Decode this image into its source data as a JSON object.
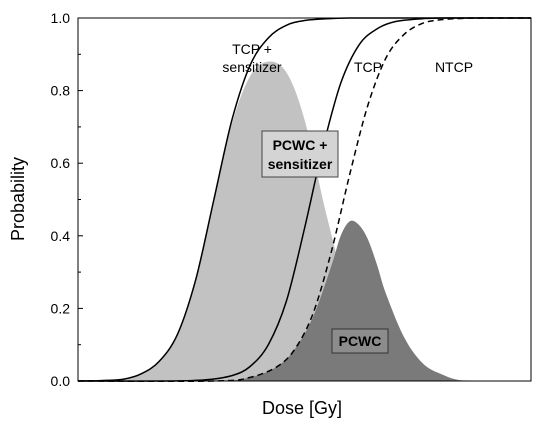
{
  "colors": {
    "pcwc_sensitizer_fill": "#c2c2c2",
    "pcwc_fill": "#7a7a7a",
    "curve_stroke": "#000000",
    "label_box_fill": "#d4d4d4"
  },
  "chart_data": {
    "type": "line",
    "title": "",
    "xlabel": "Dose [Gy]",
    "ylabel": "Probability",
    "ylim": [
      0,
      1.0
    ],
    "yticks": [
      "0.0",
      "0.2",
      "0.4",
      "0.6",
      "0.8",
      "1.0"
    ],
    "xticks_shown": false,
    "grid": false,
    "series": [
      {
        "name": "TCP + sensitizer",
        "style": "solid",
        "x": [
          0.0,
          0.05,
          0.1,
          0.14,
          0.18,
          0.22,
          0.26,
          0.3,
          0.34,
          0.38,
          0.42,
          0.46,
          0.5,
          0.55,
          0.6,
          0.65,
          0.7,
          0.8,
          1.0
        ],
        "values": [
          0.0,
          0.001,
          0.005,
          0.02,
          0.055,
          0.13,
          0.28,
          0.5,
          0.72,
          0.87,
          0.945,
          0.98,
          0.993,
          0.998,
          1.0,
          1.0,
          1.0,
          1.0,
          1.0
        ]
      },
      {
        "name": "TCP",
        "style": "solid",
        "x": [
          0.0,
          0.2,
          0.28,
          0.34,
          0.38,
          0.42,
          0.46,
          0.5,
          0.54,
          0.58,
          0.62,
          0.66,
          0.7,
          0.76,
          0.82,
          0.9,
          1.0
        ],
        "values": [
          0.0,
          0.0,
          0.003,
          0.015,
          0.04,
          0.1,
          0.22,
          0.42,
          0.64,
          0.82,
          0.925,
          0.97,
          0.99,
          0.998,
          1.0,
          1.0,
          1.0
        ]
      },
      {
        "name": "NTCP",
        "style": "dashed",
        "x": [
          0.0,
          0.3,
          0.38,
          0.44,
          0.48,
          0.52,
          0.56,
          0.6,
          0.64,
          0.68,
          0.72,
          0.76,
          0.8,
          0.85,
          0.9,
          1.0
        ],
        "values": [
          0.0,
          0.0,
          0.01,
          0.04,
          0.09,
          0.19,
          0.36,
          0.57,
          0.76,
          0.89,
          0.955,
          0.985,
          0.995,
          0.999,
          1.0,
          1.0
        ]
      },
      {
        "name": "PCWC + sensitizer",
        "style": "area",
        "x": [
          0.0,
          0.05,
          0.1,
          0.14,
          0.18,
          0.22,
          0.26,
          0.3,
          0.34,
          0.38,
          0.42,
          0.46,
          0.5,
          0.55,
          0.6,
          0.65,
          0.7,
          0.8,
          1.0
        ],
        "values": [
          0.0,
          0.0,
          0.005,
          0.02,
          0.055,
          0.13,
          0.28,
          0.5,
          0.71,
          0.84,
          0.88,
          0.85,
          0.72,
          0.45,
          0.22,
          0.09,
          0.03,
          0.005,
          0.0
        ]
      },
      {
        "name": "PCWC",
        "style": "area",
        "x": [
          0.0,
          0.3,
          0.38,
          0.44,
          0.48,
          0.52,
          0.56,
          0.58,
          0.6,
          0.62,
          0.64,
          0.66,
          0.68,
          0.72,
          0.76,
          0.8,
          0.86,
          1.0
        ],
        "values": [
          0.0,
          0.0,
          0.01,
          0.04,
          0.09,
          0.18,
          0.32,
          0.4,
          0.44,
          0.43,
          0.39,
          0.32,
          0.24,
          0.12,
          0.05,
          0.02,
          0.0,
          0.0
        ]
      }
    ],
    "annotations": {
      "tcp_sensitizer_line1": "TCP +",
      "tcp_sensitizer_line2": "sensitizer",
      "tcp": "TCP",
      "ntcp": "NTCP",
      "pcwc_sensitizer_line1": "PCWC +",
      "pcwc_sensitizer_line2": "sensitizer",
      "pcwc": "PCWC"
    }
  }
}
